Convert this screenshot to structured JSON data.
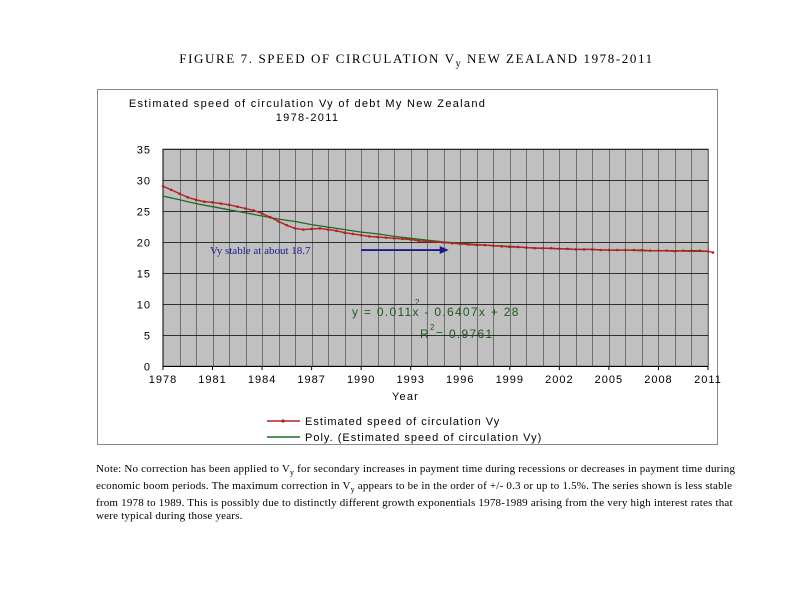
{
  "figure_title": {
    "main": "FIGURE 7. SPEED OF CIRCULATION V",
    "sub": "y",
    "rest": " NEW ZEALAND 1978-2011"
  },
  "note": {
    "part1": "Note:  No correction has been applied to V",
    "sub1": "y",
    "part2": " for secondary increases in payment time during recessions or decreases in payment time during economic boom periods. The maximum correction in V",
    "sub2": "y",
    "part3": " appears to be in the order of +/- 0.3 or up to 1.5%. The series shown is less stable from 1978 to 1989. This is possibly due to distinctly different growth exponentials 1978-1989 arising from the very high interest rates that were typical during those years."
  },
  "colors": {
    "plot_bg": "#c0c0c0",
    "grid": "#000000",
    "series_actual": "#b22222",
    "series_poly": "#1f6b1f",
    "annotation": "#1a1a8c",
    "equation": "#1f5a1f"
  },
  "chart_data": {
    "type": "line",
    "title": "Estimated speed of circulation Vy of debt My New Zealand",
    "title_line2": "1978-2011",
    "xlabel": "Year",
    "ylabel": "",
    "xlim": [
      1978,
      2011
    ],
    "ylim": [
      0,
      35
    ],
    "yticks": [
      0,
      5,
      10,
      15,
      20,
      25,
      30,
      35
    ],
    "xtick_labels": [
      "1978",
      "1981",
      "1984",
      "1987",
      "1990",
      "1993",
      "1996",
      "1999",
      "2002",
      "2005",
      "2008",
      "2011"
    ],
    "grid": true,
    "legend_placement": "bottom",
    "series": [
      {
        "name": "Estimated speed of circulation Vy",
        "x": [
          1978.0,
          1978.5,
          1979.0,
          1979.5,
          1980.0,
          1980.5,
          1981.0,
          1981.5,
          1982.0,
          1982.5,
          1983.0,
          1983.5,
          1984.0,
          1984.5,
          1985.0,
          1985.5,
          1986.0,
          1986.5,
          1987.0,
          1987.5,
          1988.0,
          1988.5,
          1989.0,
          1989.5,
          1990.0,
          1990.5,
          1991.0,
          1991.5,
          1992.0,
          1992.5,
          1993.0,
          1993.5,
          1994.0,
          1994.5,
          1995.0,
          1995.5,
          1996.0,
          1996.5,
          1997.0,
          1997.5,
          1998.0,
          1998.5,
          1999.0,
          1999.5,
          2000.0,
          2000.5,
          2001.0,
          2001.5,
          2002.0,
          2002.5,
          2003.0,
          2003.5,
          2004.0,
          2004.5,
          2005.0,
          2005.5,
          2006.0,
          2006.5,
          2007.0,
          2007.5,
          2008.0,
          2008.5,
          2009.0,
          2009.5,
          2010.0,
          2010.5,
          2011.0,
          2011.3
        ],
        "y": [
          29.0,
          28.4,
          27.8,
          27.2,
          26.8,
          26.5,
          26.4,
          26.2,
          26.0,
          25.7,
          25.4,
          25.1,
          24.6,
          24.0,
          23.3,
          22.7,
          22.2,
          22.0,
          22.1,
          22.2,
          22.0,
          21.8,
          21.5,
          21.3,
          21.1,
          20.9,
          20.8,
          20.7,
          20.6,
          20.5,
          20.4,
          20.2,
          20.1,
          20.0,
          19.9,
          19.8,
          19.7,
          19.6,
          19.5,
          19.5,
          19.4,
          19.3,
          19.2,
          19.2,
          19.1,
          19.0,
          19.0,
          19.0,
          18.9,
          18.9,
          18.8,
          18.8,
          18.8,
          18.7,
          18.7,
          18.7,
          18.7,
          18.7,
          18.7,
          18.6,
          18.6,
          18.6,
          18.5,
          18.6,
          18.6,
          18.6,
          18.5,
          18.3
        ]
      },
      {
        "name": "Poly. (Estimated speed of circulation Vy)",
        "type": "poly_trendline",
        "x": [
          1978,
          1979,
          1980,
          1981,
          1982,
          1983,
          1984,
          1985,
          1986,
          1987,
          1988,
          1989,
          1990,
          1991,
          1992,
          1993,
          1994,
          1995,
          1996,
          1997,
          1998,
          1999,
          2000,
          2001,
          2002,
          2003,
          2004,
          2005,
          2006,
          2007,
          2008,
          2009,
          2010,
          2011
        ],
        "y": [
          27.4,
          26.8,
          26.2,
          25.7,
          25.2,
          24.7,
          24.2,
          23.7,
          23.3,
          22.8,
          22.4,
          22.0,
          21.6,
          21.3,
          20.9,
          20.6,
          20.3,
          20.0,
          19.8,
          19.6,
          19.4,
          19.3,
          19.1,
          19.0,
          18.9,
          18.8,
          18.8,
          18.7,
          18.7,
          18.6,
          18.6,
          18.6,
          18.5,
          18.5
        ]
      }
    ],
    "annotations": {
      "stable_text": "Vy stable at about 18.7",
      "stable_arrow": {
        "x1": 1990.0,
        "x2": 1995.3,
        "y": 18.7
      },
      "equation": "y = 0.011x  - 0.6407x + 28",
      "equation_exponent": "2",
      "r_squared_label": "R",
      "r_squared_exponent": "2",
      "r_squared_value": " = 0.9761"
    }
  }
}
